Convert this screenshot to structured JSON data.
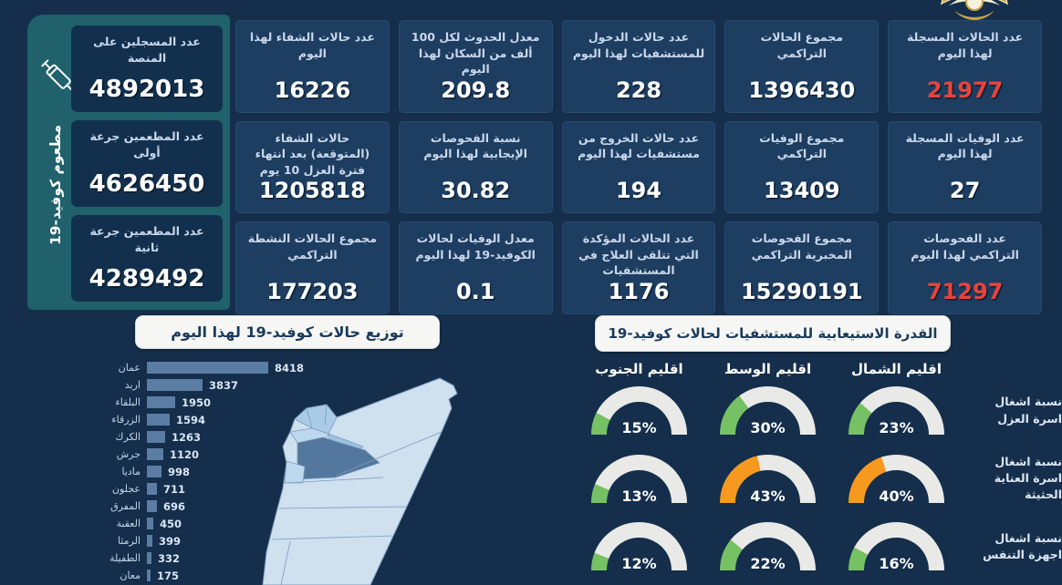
{
  "theme": {
    "bg": "#142e4b",
    "card_bg": "#1d3d61",
    "teal_panel": "#20616b",
    "red": "#e8443b",
    "white": "#ffffff",
    "bar_color": "#5b7da3",
    "gauge_green": "#76c163",
    "gauge_orange": "#f7991f",
    "gauge_track": "#e9eae7",
    "map_base": "#cfe0ef",
    "map_dark_region": "#54779e"
  },
  "vaccine_panel": {
    "vertical_label": "مطعوم كوفيد-19",
    "syringe_icon": "syringe-icon",
    "cards": [
      {
        "label": "عدد المسجلين على المنصة",
        "value": "4892013"
      },
      {
        "label": "عدد المطعمين جرعة أولى",
        "value": "4626450"
      },
      {
        "label": "عدد المطعمين جرعة ثانية",
        "value": "4289492"
      }
    ]
  },
  "stat_cards": [
    {
      "label": "عدد الحالات المسجلة لهذا اليوم",
      "value": "21977",
      "accent": "red"
    },
    {
      "label": "مجموع الحالات التراكمي",
      "value": "1396430",
      "accent": "white"
    },
    {
      "label": "عدد حالات الدخول للمستشفيات لهذا اليوم",
      "value": "228",
      "accent": "white"
    },
    {
      "label": "معدل الحدوث لكل 100 ألف من السكان لهذا اليوم",
      "value": "209.8",
      "accent": "white"
    },
    {
      "label": "عدد حالات الشفاء لهذا اليوم",
      "value": "16226",
      "accent": "white"
    },
    {
      "label": "عدد الوفيات المسجلة لهذا اليوم",
      "value": "27",
      "accent": "white"
    },
    {
      "label": "مجموع الوفيات التراكمي",
      "value": "13409",
      "accent": "white"
    },
    {
      "label": "عدد حالات الخروج من مستشفيات لهذا اليوم",
      "value": "194",
      "accent": "white"
    },
    {
      "label": "نسبة الفحوصات الإيجابية لهذا اليوم",
      "value": "30.82",
      "accent": "white"
    },
    {
      "label": "حالات الشفاء (المتوقعة) بعد انتهاء فترة العزل 10 يوم",
      "value": "1205818",
      "accent": "white"
    },
    {
      "label": "عدد الفحوصات التراكمي لهذا اليوم",
      "value": "71297",
      "accent": "red"
    },
    {
      "label": "مجموع الفحوصات المخبرية التراكمي",
      "value": "15290191",
      "accent": "white"
    },
    {
      "label": "عدد الحالات المؤكدة التي تتلقى العلاج في المستشفيات",
      "value": "1176",
      "accent": "white"
    },
    {
      "label": "معدل الوفيات لحالات الكوفيد-19 لهذا اليوم",
      "value": "0.1",
      "accent": "white"
    },
    {
      "label": "مجموع الحالات النشطة التراكمي",
      "value": "177203",
      "accent": "white"
    }
  ],
  "chart_data": [
    {
      "type": "bar",
      "orientation": "horizontal",
      "title": "توزيع حالات كوفيد-19 لهذا اليوم",
      "categories": [
        "عمان",
        "اربد",
        "البلقاء",
        "الزرقاء",
        "الكرك",
        "جرش",
        "ماديا",
        "عجلون",
        "المفرق",
        "العقبة",
        "الرمثا",
        "الطفيلة",
        "معان"
      ],
      "values": [
        8418,
        3837,
        1950,
        1594,
        1263,
        1120,
        998,
        711,
        696,
        450,
        399,
        332,
        175
      ],
      "xlim": [
        0,
        8418
      ],
      "grid": false,
      "legend": false
    },
    {
      "type": "gauge-grid",
      "title": "القدرة الاستيعابية للمستشفيات لحالات كوفيد-19",
      "columns": [
        "اقليم الجنوب",
        "اقليم الوسط",
        "اقليم الشمال"
      ],
      "rows": [
        {
          "label": "نسبة اشغال اسرة العزل",
          "values": [
            15,
            30,
            23
          ],
          "colors": [
            "green",
            "green",
            "green"
          ]
        },
        {
          "label": "نسبة اشغال اسرة العناية الحثيثة",
          "values": [
            13,
            43,
            40
          ],
          "colors": [
            "green",
            "orange",
            "orange"
          ]
        },
        {
          "label": "نسبة اشغال اجهزة التنفس",
          "values": [
            12,
            22,
            16
          ],
          "colors": [
            "green",
            "green",
            "green"
          ]
        }
      ],
      "gauge_range": [
        0,
        100
      ]
    }
  ]
}
